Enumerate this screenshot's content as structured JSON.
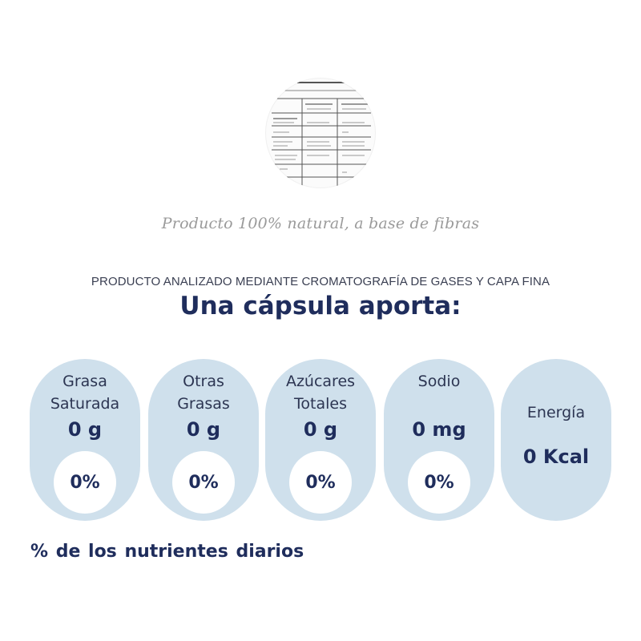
{
  "tagline": "Producto 100% natural, a base de fibras",
  "method": "PRODUCTO ANALIZADO MEDIANTE CROMATOGRAFÍA DE GASES Y CAPA FINA",
  "heading": "Una cápsula aporta:",
  "nutrients": [
    {
      "name": "Grasa\nSaturada",
      "value": "0 g",
      "percent": "0%"
    },
    {
      "name": "Otras\nGrasas",
      "value": "0 g",
      "percent": "0%"
    },
    {
      "name": "Azúcares\nTotales",
      "value": "0 g",
      "percent": "0%"
    },
    {
      "name": "Sodio",
      "value": "0 mg",
      "percent": "0%"
    },
    {
      "name": "Energía",
      "value": "0 Kcal"
    }
  ],
  "footer": "%  de los nutrientes diarios",
  "colors": {
    "pill_background": "#cfe0ec",
    "navy_text": "#1f2d5c",
    "tagline_gray": "#9a9a9a"
  }
}
